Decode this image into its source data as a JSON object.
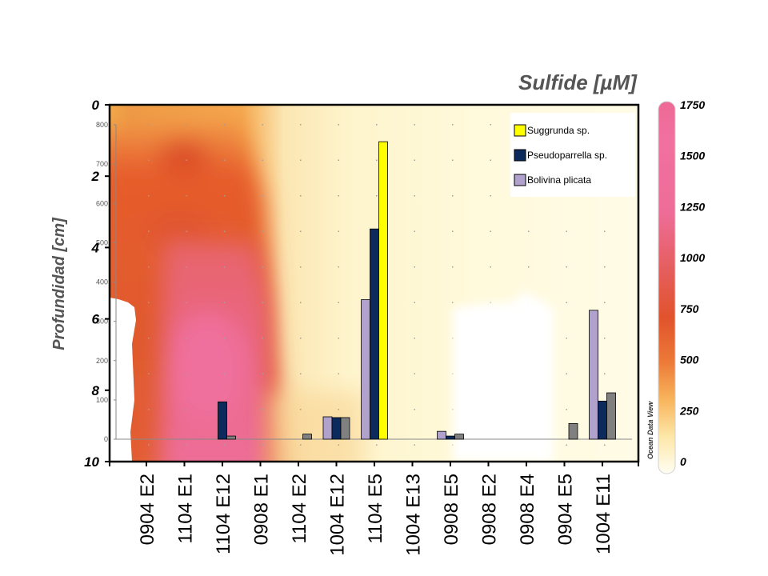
{
  "chart_data": {
    "type": "bar",
    "title": "Sulfide [µM]",
    "ylabel": "Profundidad [cm]",
    "categories": [
      "0904 E2",
      "1104 E1",
      "1104 E12",
      "0908 E1",
      "1104 E2",
      "1004 E12",
      "1104 E5",
      "1004 E13",
      "0908 E5",
      "0908 E2",
      "0908 E4",
      "0904 E5",
      "1004 E11"
    ],
    "series": [
      {
        "name": "Bolivina plicata",
        "color": "#b0a2cc",
        "values": [
          0,
          0,
          0,
          0,
          0,
          57,
          355,
          0,
          20,
          0,
          0,
          0,
          328
        ]
      },
      {
        "name": "Pseudoparrella sp.",
        "color": "#0d2a5c",
        "values": [
          0,
          0,
          95,
          0,
          0,
          55,
          535,
          0,
          8,
          0,
          0,
          0,
          97
        ]
      },
      {
        "name": "Suggrunda sp.",
        "color": "#ffff00",
        "values": [
          0,
          0,
          0,
          0,
          0,
          0,
          757,
          0,
          0,
          0,
          0,
          0,
          0
        ]
      },
      {
        "name": "",
        "color": "#808080",
        "values": [
          0,
          0,
          8,
          0,
          13,
          55,
          0,
          0,
          13,
          0,
          0,
          40,
          118
        ]
      }
    ],
    "legend_order": [
      "Suggrunda sp.",
      "Pseudoparrella sp.",
      "Bolivina plicata"
    ],
    "legend_placement": "top-right",
    "ylim": [
      0,
      800
    ],
    "yticks": [
      0,
      100,
      200,
      300,
      400,
      500,
      600,
      700,
      800
    ],
    "depth_axis": {
      "ticks": [
        0,
        2,
        4,
        6,
        8,
        10
      ],
      "range": [
        0,
        10
      ]
    },
    "colorbar": {
      "ticks": [
        0,
        250,
        500,
        750,
        1000,
        1250,
        1500,
        1750
      ],
      "range": [
        0,
        1750
      ],
      "colors": [
        "#fffef0",
        "#fdd890",
        "#f59a4a",
        "#e25a2e",
        "#e45c60",
        "#ef6f9d",
        "#f0709e",
        "#ef6896"
      ]
    },
    "watermark": "Ocean Data View"
  }
}
